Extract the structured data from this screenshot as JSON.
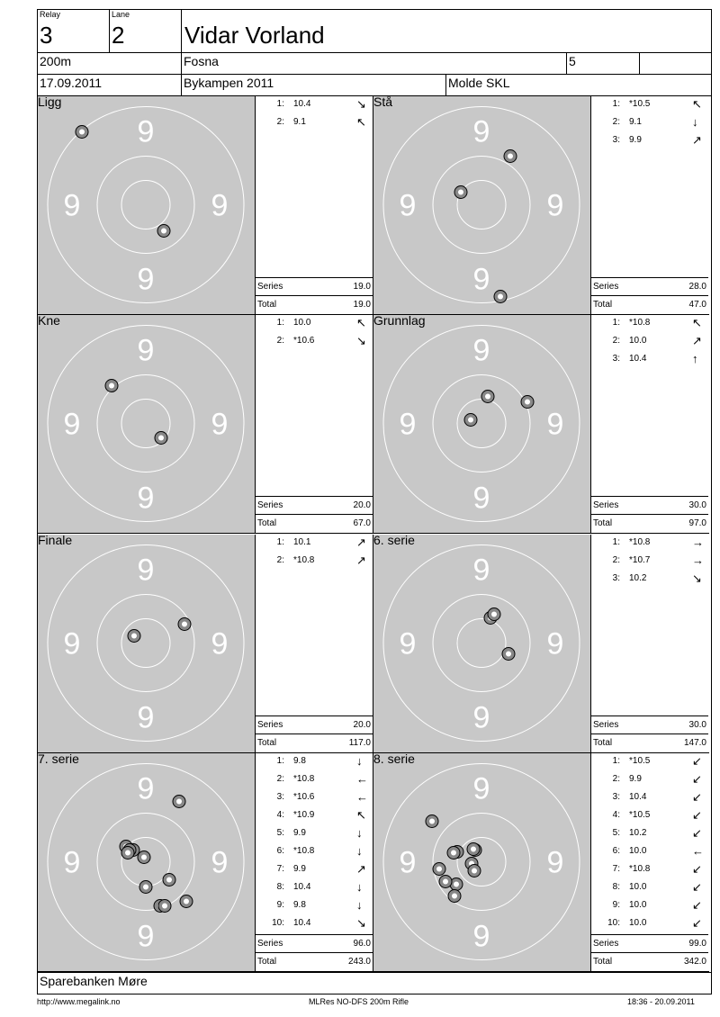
{
  "header": {
    "relay_label": "Relay",
    "relay_value": "3",
    "lane_label": "Lane",
    "lane_value": "2",
    "shooter_name": "Vidar Vorland",
    "distance": "200m",
    "club": "Fosna",
    "class": "5",
    "date": "17.09.2011",
    "event": "Bykampen 2011",
    "location": "Molde SKL"
  },
  "target_ring_label": "9",
  "panels": [
    {
      "title": "Ligg",
      "series_label": "Series",
      "series": "19.0",
      "total_label": "Total",
      "total": "19.0",
      "shots": [
        {
          "n": "1:",
          "v": "10.4",
          "a": "↘"
        },
        {
          "n": "2:",
          "v": "9.1",
          "a": "↖"
        }
      ]
    },
    {
      "title": "Stå",
      "series_label": "Series",
      "series": "28.0",
      "total_label": "Total",
      "total": "47.0",
      "shots": [
        {
          "n": "1:",
          "v": "*10.5",
          "a": "↖"
        },
        {
          "n": "2:",
          "v": "9.1",
          "a": "↓"
        },
        {
          "n": "3:",
          "v": "9.9",
          "a": "↗"
        }
      ]
    },
    {
      "title": "Kne",
      "series_label": "Series",
      "series": "20.0",
      "total_label": "Total",
      "total": "67.0",
      "shots": [
        {
          "n": "1:",
          "v": "10.0",
          "a": "↖"
        },
        {
          "n": "2:",
          "v": "*10.6",
          "a": "↘"
        }
      ]
    },
    {
      "title": "Grunnlag",
      "series_label": "Series",
      "series": "30.0",
      "total_label": "Total",
      "total": "97.0",
      "shots": [
        {
          "n": "1:",
          "v": "*10.8",
          "a": "↖"
        },
        {
          "n": "2:",
          "v": "10.0",
          "a": "↗"
        },
        {
          "n": "3:",
          "v": "10.4",
          "a": "↑"
        }
      ]
    },
    {
      "title": "Finale",
      "series_label": "Series",
      "series": "20.0",
      "total_label": "Total",
      "total": "117.0",
      "shots": [
        {
          "n": "1:",
          "v": "10.1",
          "a": "↗"
        },
        {
          "n": "2:",
          "v": "*10.8",
          "a": "↗"
        }
      ]
    },
    {
      "title": "6. serie",
      "series_label": "Series",
      "series": "30.0",
      "total_label": "Total",
      "total": "147.0",
      "shots": [
        {
          "n": "1:",
          "v": "*10.8",
          "a": "→"
        },
        {
          "n": "2:",
          "v": "*10.7",
          "a": "→"
        },
        {
          "n": "3:",
          "v": "10.2",
          "a": "↘"
        }
      ]
    },
    {
      "title": "7. serie",
      "series_label": "Series",
      "series": "96.0",
      "total_label": "Total",
      "total": "243.0",
      "shots": [
        {
          "n": "1:",
          "v": "9.8",
          "a": "↓"
        },
        {
          "n": "2:",
          "v": "*10.8",
          "a": "←"
        },
        {
          "n": "3:",
          "v": "*10.6",
          "a": "←"
        },
        {
          "n": "4:",
          "v": "*10.9",
          "a": "↖"
        },
        {
          "n": "5:",
          "v": "9.9",
          "a": "↓"
        },
        {
          "n": "6:",
          "v": "*10.8",
          "a": "↓"
        },
        {
          "n": "7:",
          "v": "9.9",
          "a": "↗"
        },
        {
          "n": "8:",
          "v": "10.4",
          "a": "↓"
        },
        {
          "n": "9:",
          "v": "9.8",
          "a": "↓"
        },
        {
          "n": "10:",
          "v": "10.4",
          "a": "↘"
        }
      ]
    },
    {
      "title": "8. serie",
      "series_label": "Series",
      "series": "99.0",
      "total_label": "Total",
      "total": "342.0",
      "shots": [
        {
          "n": "1:",
          "v": "*10.5",
          "a": "↙"
        },
        {
          "n": "2:",
          "v": "9.9",
          "a": "↙"
        },
        {
          "n": "3:",
          "v": "10.4",
          "a": "↙"
        },
        {
          "n": "4:",
          "v": "*10.5",
          "a": "↙"
        },
        {
          "n": "5:",
          "v": "10.2",
          "a": "↙"
        },
        {
          "n": "6:",
          "v": "10.0",
          "a": "←"
        },
        {
          "n": "7:",
          "v": "*10.8",
          "a": "↙"
        },
        {
          "n": "8:",
          "v": "10.0",
          "a": "↙"
        },
        {
          "n": "9:",
          "v": "10.0",
          "a": "↙"
        },
        {
          "n": "10:",
          "v": "10.0",
          "a": "↙"
        }
      ]
    }
  ],
  "sponsor": "Sparebanken Møre",
  "footer": {
    "url": "http://www.megalink.no",
    "program": "MLRes NO-DFS 200m Rifle",
    "timestamp": "18:36 - 20.09.2011"
  }
}
